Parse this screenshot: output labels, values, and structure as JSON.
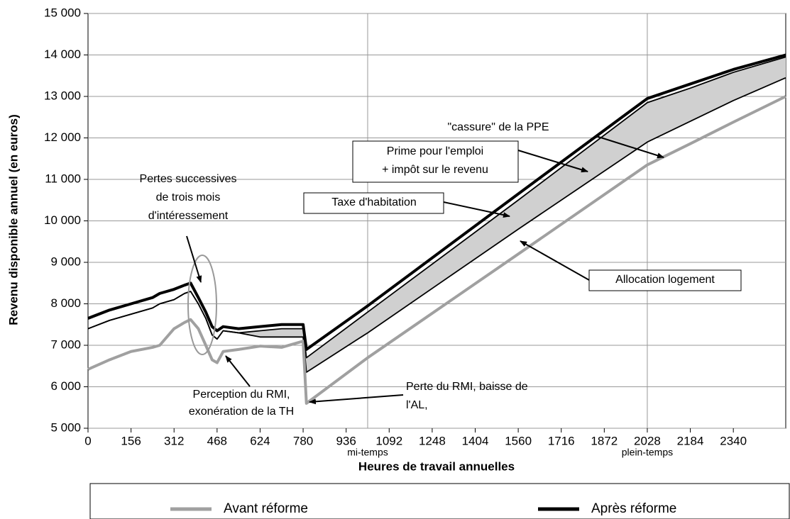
{
  "chart_data": {
    "type": "line",
    "y_label": "Revenu disponible annuel (en euros)",
    "x_label": "Heures de travail annuelles",
    "x": [
      0,
      78,
      156,
      234,
      260,
      312,
      350,
      372,
      400,
      427,
      450,
      468,
      490,
      546,
      624,
      702,
      780,
      792,
      1014,
      1560,
      2028,
      2184,
      2340,
      2530
    ],
    "series": [
      {
        "name": "Avant réforme",
        "color": "#a0a0a0",
        "values": [
          6420,
          6650,
          6850,
          6950,
          7000,
          7400,
          7550,
          7620,
          7400,
          7000,
          6650,
          6580,
          6850,
          6900,
          6980,
          6950,
          7100,
          5600,
          6700,
          9200,
          11350,
          11860,
          12380,
          13000
        ]
      },
      {
        "name": "Après réforme",
        "color": "#000000",
        "values": [
          7650,
          7850,
          8000,
          8150,
          8250,
          8350,
          8450,
          8500,
          8150,
          7800,
          7450,
          7350,
          7450,
          7400,
          7450,
          7500,
          7500,
          6900,
          7950,
          10650,
          12950,
          13300,
          13650,
          14000
        ]
      },
      {
        "color": "#000000",
        "values": [
          7400,
          7600,
          7750,
          7900,
          8000,
          8100,
          8250,
          8300,
          8000,
          7650,
          7250,
          7150,
          7350,
          7300,
          7350,
          7400,
          7400,
          6700,
          7800,
          10500,
          12850,
          13200,
          13580,
          13950
        ]
      },
      {
        "color": "#000000",
        "values": [
          7400,
          7600,
          7750,
          7900,
          8000,
          8100,
          8250,
          8300,
          8000,
          7650,
          7250,
          7150,
          7350,
          7300,
          7200,
          7200,
          7200,
          6350,
          7300,
          9800,
          11900,
          12400,
          12900,
          13450
        ]
      }
    ],
    "band_color": "#d0d0d0",
    "xlim": [
      0,
      2530
    ],
    "xticks": [
      0,
      156,
      312,
      468,
      624,
      780,
      936,
      1092,
      1248,
      1404,
      1560,
      1716,
      1872,
      2028,
      2184,
      2340
    ],
    "ylim": [
      5000,
      15000
    ],
    "yticks": [
      {
        "value": 5000,
        "label": "5 000"
      },
      {
        "value": 6000,
        "label": "6 000"
      },
      {
        "value": 7000,
        "label": "7 000"
      },
      {
        "value": 8000,
        "label": "8 000"
      },
      {
        "value": 9000,
        "label": "9 000"
      },
      {
        "value": 10000,
        "label": "10 000"
      },
      {
        "value": 11000,
        "label": "11 000"
      },
      {
        "value": 12000,
        "label": "12 000"
      },
      {
        "value": 13000,
        "label": "13 000"
      },
      {
        "value": 14000,
        "label": "14 000"
      },
      {
        "value": 15000,
        "label": "15 000"
      }
    ],
    "grid": true,
    "vlines": [
      {
        "value": 1014,
        "label": "mi-temps"
      },
      {
        "value": 2028,
        "label": "plein-temps"
      }
    ],
    "annotations": [
      {
        "text": [
          "\"cassure\" de la PPE"
        ]
      },
      {
        "text": [
          "Prime pour l'emploi",
          "+ impôt sur le revenu"
        ]
      },
      {
        "text": [
          "Taxe d'habitation"
        ]
      },
      {
        "text": [
          "Allocation logement"
        ]
      },
      {
        "text": [
          "Pertes successives",
          "de trois mois",
          "d'intéressement"
        ]
      },
      {
        "text": [
          "Perception du RMI,",
          "exonération de la TH"
        ]
      },
      {
        "text": [
          "Perte du RMI, baisse de",
          "l'AL,"
        ]
      }
    ],
    "legend": "bottom"
  }
}
